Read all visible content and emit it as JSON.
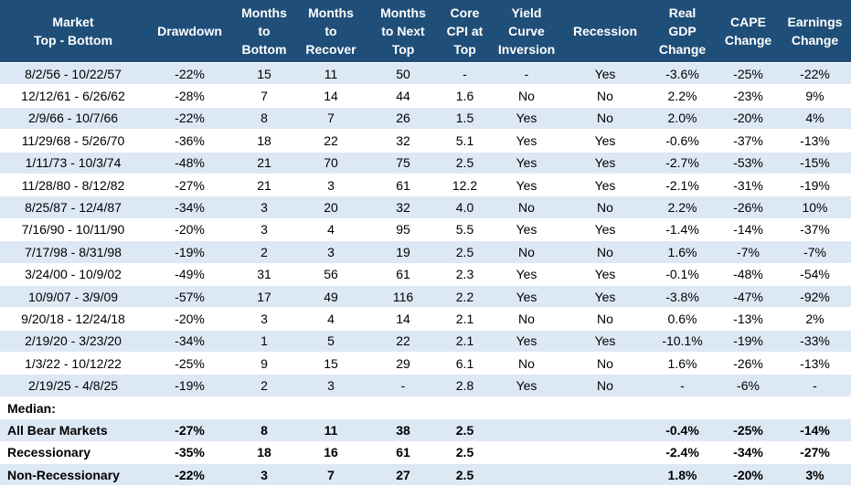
{
  "table": {
    "headers": [
      [
        "Market",
        "Top - Bottom"
      ],
      [
        "Drawdown"
      ],
      [
        "Months",
        "to",
        "Bottom"
      ],
      [
        "Months",
        "to",
        "Recover"
      ],
      [
        "Months",
        "to Next",
        "Top"
      ],
      [
        "Core",
        "CPI at",
        "Top"
      ],
      [
        "Yield",
        "Curve",
        "Inversion"
      ],
      [
        "Recession"
      ],
      [
        "Real",
        "GDP",
        "Change"
      ],
      [
        "CAPE",
        "Change"
      ],
      [
        "Earnings",
        "Change"
      ]
    ],
    "rows": [
      [
        "8/2/56 - 10/22/57",
        "-22%",
        "15",
        "11",
        "50",
        "-",
        "-",
        "Yes",
        "-3.6%",
        "-25%",
        "-22%"
      ],
      [
        "12/12/61 - 6/26/62",
        "-28%",
        "7",
        "14",
        "44",
        "1.6",
        "No",
        "No",
        "2.2%",
        "-23%",
        "9%"
      ],
      [
        "2/9/66 - 10/7/66",
        "-22%",
        "8",
        "7",
        "26",
        "1.5",
        "Yes",
        "No",
        "2.0%",
        "-20%",
        "4%"
      ],
      [
        "11/29/68 - 5/26/70",
        "-36%",
        "18",
        "22",
        "32",
        "5.1",
        "Yes",
        "Yes",
        "-0.6%",
        "-37%",
        "-13%"
      ],
      [
        "1/11/73 - 10/3/74",
        "-48%",
        "21",
        "70",
        "75",
        "2.5",
        "Yes",
        "Yes",
        "-2.7%",
        "-53%",
        "-15%"
      ],
      [
        "11/28/80 - 8/12/82",
        "-27%",
        "21",
        "3",
        "61",
        "12.2",
        "Yes",
        "Yes",
        "-2.1%",
        "-31%",
        "-19%"
      ],
      [
        "8/25/87 - 12/4/87",
        "-34%",
        "3",
        "20",
        "32",
        "4.0",
        "No",
        "No",
        "2.2%",
        "-26%",
        "10%"
      ],
      [
        "7/16/90 - 10/11/90",
        "-20%",
        "3",
        "4",
        "95",
        "5.5",
        "Yes",
        "Yes",
        "-1.4%",
        "-14%",
        "-37%"
      ],
      [
        "7/17/98 - 8/31/98",
        "-19%",
        "2",
        "3",
        "19",
        "2.5",
        "No",
        "No",
        "1.6%",
        "-7%",
        "-7%"
      ],
      [
        "3/24/00 - 10/9/02",
        "-49%",
        "31",
        "56",
        "61",
        "2.3",
        "Yes",
        "Yes",
        "-0.1%",
        "-48%",
        "-54%"
      ],
      [
        "10/9/07 - 3/9/09",
        "-57%",
        "17",
        "49",
        "116",
        "2.2",
        "Yes",
        "Yes",
        "-3.8%",
        "-47%",
        "-92%"
      ],
      [
        "9/20/18 - 12/24/18",
        "-20%",
        "3",
        "4",
        "14",
        "2.1",
        "No",
        "No",
        "0.6%",
        "-13%",
        "2%"
      ],
      [
        "2/19/20 - 3/23/20",
        "-34%",
        "1",
        "5",
        "22",
        "2.1",
        "Yes",
        "Yes",
        "-10.1%",
        "-19%",
        "-33%"
      ],
      [
        "1/3/22 - 10/12/22",
        "-25%",
        "9",
        "15",
        "29",
        "6.1",
        "No",
        "No",
        "1.6%",
        "-26%",
        "-13%"
      ],
      [
        "2/19/25 - 4/8/25",
        "-19%",
        "2",
        "3",
        "-",
        "2.8",
        "Yes",
        "No",
        "-",
        "-6%",
        "-"
      ]
    ],
    "median_label": "Median:",
    "summary": [
      [
        "All Bear Markets",
        "-27%",
        "8",
        "11",
        "38",
        "2.5",
        null,
        null,
        "-0.4%",
        "-25%",
        "-14%"
      ],
      [
        "Recessionary",
        "-35%",
        "18",
        "16",
        "61",
        "2.5",
        null,
        null,
        "-2.4%",
        "-34%",
        "-27%"
      ],
      [
        "Non-Recessionary",
        "-22%",
        "3",
        "7",
        "27",
        "2.5",
        null,
        null,
        "1.8%",
        "-20%",
        "3%"
      ]
    ]
  }
}
